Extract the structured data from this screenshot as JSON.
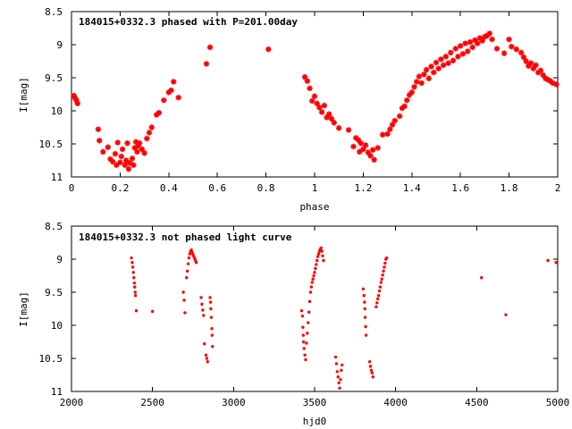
{
  "chart_data": [
    {
      "type": "scatter",
      "title": "184015+0332.3 phased with P=201.00day",
      "xlabel": "phase",
      "ylabel": "I[mag]",
      "xlim": [
        0,
        2
      ],
      "ylim": [
        11,
        8.5
      ],
      "y_inverted": true,
      "grid": false,
      "legend": "none",
      "color": "#ff0000",
      "marker": "star",
      "xticks": [
        0,
        0.2,
        0.4,
        0.6,
        0.8,
        1,
        1.2,
        1.4,
        1.6,
        1.8,
        2
      ],
      "xtick_labels": [
        "0",
        "0.2",
        "0.4",
        "0.6",
        "0.8",
        "1",
        "1.2",
        "1.4",
        "1.6",
        "1.8",
        "2"
      ],
      "yticks": [
        8.5,
        9,
        9.5,
        10,
        10.5,
        11
      ],
      "ytick_labels": [
        "8.5",
        "9",
        "9.5",
        "10",
        "10.5",
        "11"
      ],
      "series": [
        {
          "points": [
            [
              0.01,
              9.77
            ],
            [
              0.015,
              9.81
            ],
            [
              0.02,
              9.84
            ],
            [
              0.025,
              9.89
            ],
            [
              0.11,
              10.28
            ],
            [
              0.115,
              10.45
            ],
            [
              0.13,
              10.62
            ],
            [
              0.15,
              10.55
            ],
            [
              0.16,
              10.73
            ],
            [
              0.17,
              10.77
            ],
            [
              0.18,
              10.65
            ],
            [
              0.185,
              10.82
            ],
            [
              0.19,
              10.48
            ],
            [
              0.2,
              10.78
            ],
            [
              0.205,
              10.69
            ],
            [
              0.21,
              10.58
            ],
            [
              0.22,
              10.82
            ],
            [
              0.225,
              10.75
            ],
            [
              0.23,
              10.49
            ],
            [
              0.235,
              10.88
            ],
            [
              0.24,
              10.79
            ],
            [
              0.25,
              10.72
            ],
            [
              0.255,
              10.82
            ],
            [
              0.26,
              10.56
            ],
            [
              0.265,
              10.47
            ],
            [
              0.27,
              10.62
            ],
            [
              0.275,
              10.53
            ],
            [
              0.28,
              10.49
            ],
            [
              0.29,
              10.58
            ],
            [
              0.3,
              10.64
            ],
            [
              0.31,
              10.42
            ],
            [
              0.32,
              10.33
            ],
            [
              0.33,
              10.25
            ],
            [
              0.35,
              10.06
            ],
            [
              0.36,
              10.03
            ],
            [
              0.38,
              9.84
            ],
            [
              0.4,
              9.72
            ],
            [
              0.41,
              9.69
            ],
            [
              0.42,
              9.56
            ],
            [
              0.44,
              9.8
            ],
            [
              0.555,
              9.29
            ],
            [
              0.57,
              9.04
            ],
            [
              0.81,
              9.07
            ],
            [
              0.96,
              9.49
            ],
            [
              0.97,
              9.55
            ],
            [
              0.98,
              9.66
            ],
            [
              0.99,
              9.85
            ],
            [
              1.0,
              9.78
            ],
            [
              1.01,
              9.89
            ],
            [
              1.02,
              9.95
            ],
            [
              1.03,
              10.02
            ],
            [
              1.04,
              9.92
            ],
            [
              1.05,
              10.1
            ],
            [
              1.06,
              10.05
            ],
            [
              1.07,
              10.12
            ],
            [
              1.08,
              10.18
            ],
            [
              1.1,
              10.26
            ],
            [
              1.14,
              10.29
            ],
            [
              1.16,
              10.54
            ],
            [
              1.17,
              10.41
            ],
            [
              1.18,
              10.44
            ],
            [
              1.185,
              10.62
            ],
            [
              1.19,
              10.49
            ],
            [
              1.2,
              10.58
            ],
            [
              1.21,
              10.52
            ],
            [
              1.22,
              10.63
            ],
            [
              1.23,
              10.68
            ],
            [
              1.24,
              10.59
            ],
            [
              1.245,
              10.74
            ],
            [
              1.26,
              10.56
            ],
            [
              1.28,
              10.36
            ],
            [
              1.3,
              10.35
            ],
            [
              1.31,
              10.28
            ],
            [
              1.32,
              10.21
            ],
            [
              1.33,
              10.15
            ],
            [
              1.35,
              10.08
            ],
            [
              1.36,
              9.96
            ],
            [
              1.37,
              9.93
            ],
            [
              1.38,
              9.84
            ],
            [
              1.39,
              9.76
            ],
            [
              1.4,
              9.72
            ],
            [
              1.41,
              9.64
            ],
            [
              1.42,
              9.56
            ],
            [
              1.43,
              9.48
            ],
            [
              1.44,
              9.58
            ],
            [
              1.45,
              9.45
            ],
            [
              1.46,
              9.38
            ],
            [
              1.47,
              9.51
            ],
            [
              1.48,
              9.33
            ],
            [
              1.49,
              9.42
            ],
            [
              1.5,
              9.27
            ],
            [
              1.51,
              9.36
            ],
            [
              1.52,
              9.22
            ],
            [
              1.53,
              9.31
            ],
            [
              1.54,
              9.18
            ],
            [
              1.55,
              9.28
            ],
            [
              1.56,
              9.12
            ],
            [
              1.57,
              9.24
            ],
            [
              1.58,
              9.06
            ],
            [
              1.59,
              9.18
            ],
            [
              1.6,
              9.02
            ],
            [
              1.61,
              9.14
            ],
            [
              1.62,
              8.98
            ],
            [
              1.63,
              9.1
            ],
            [
              1.64,
              8.96
            ],
            [
              1.65,
              9.04
            ],
            [
              1.66,
              8.93
            ],
            [
              1.67,
              8.98
            ],
            [
              1.68,
              8.9
            ],
            [
              1.69,
              8.94
            ],
            [
              1.7,
              8.88
            ],
            [
              1.71,
              8.86
            ],
            [
              1.72,
              8.83
            ],
            [
              1.73,
              8.92
            ],
            [
              1.75,
              9.06
            ],
            [
              1.78,
              9.13
            ],
            [
              1.8,
              8.92
            ],
            [
              1.81,
              9.03
            ],
            [
              1.83,
              9.07
            ],
            [
              1.85,
              9.12
            ],
            [
              1.86,
              9.19
            ],
            [
              1.87,
              9.25
            ],
            [
              1.88,
              9.32
            ],
            [
              1.89,
              9.28
            ],
            [
              1.9,
              9.36
            ],
            [
              1.91,
              9.31
            ],
            [
              1.92,
              9.42
            ],
            [
              1.93,
              9.39
            ],
            [
              1.94,
              9.46
            ],
            [
              1.95,
              9.51
            ],
            [
              1.96,
              9.53
            ],
            [
              1.97,
              9.55
            ],
            [
              1.98,
              9.58
            ],
            [
              1.995,
              9.6
            ]
          ]
        }
      ]
    },
    {
      "type": "scatter",
      "title": "184015+0332.3 not phased light curve",
      "xlabel": "hjd0",
      "ylabel": "I[mag]",
      "xlim": [
        2000,
        5000
      ],
      "ylim": [
        11,
        8.5
      ],
      "y_inverted": true,
      "grid": false,
      "legend": "none",
      "color": "#ff0000",
      "marker": "dot",
      "xticks": [
        2000,
        2500,
        3000,
        3500,
        4000,
        4500,
        5000
      ],
      "xtick_labels": [
        "2000",
        "2500",
        "3000",
        "3500",
        "4000",
        "4500",
        "5000"
      ],
      "yticks": [
        8.5,
        9,
        9.5,
        10,
        10.5,
        11
      ],
      "ytick_labels": [
        "8.5",
        "9",
        "9.5",
        "10",
        "10.5",
        "11"
      ],
      "series": [
        {
          "points": [
            [
              2370,
              8.98
            ],
            [
              2375,
              9.05
            ],
            [
              2378,
              9.12
            ],
            [
              2382,
              9.2
            ],
            [
              2385,
              9.28
            ],
            [
              2388,
              9.36
            ],
            [
              2390,
              9.42
            ],
            [
              2393,
              9.5
            ],
            [
              2395,
              9.55
            ],
            [
              2400,
              9.78
            ],
            [
              2500,
              9.79
            ],
            [
              2690,
              9.5
            ],
            [
              2695,
              9.62
            ],
            [
              2700,
              9.81
            ],
            [
              2710,
              9.28
            ],
            [
              2715,
              9.18
            ],
            [
              2720,
              9.07
            ],
            [
              2725,
              8.98
            ],
            [
              2730,
              8.92
            ],
            [
              2735,
              8.88
            ],
            [
              2740,
              8.86
            ],
            [
              2745,
              8.9
            ],
            [
              2750,
              8.93
            ],
            [
              2755,
              8.96
            ],
            [
              2760,
              8.99
            ],
            [
              2765,
              9.02
            ],
            [
              2770,
              9.05
            ],
            [
              2800,
              9.58
            ],
            [
              2805,
              9.68
            ],
            [
              2810,
              9.77
            ],
            [
              2815,
              9.85
            ],
            [
              2820,
              10.28
            ],
            [
              2830,
              10.45
            ],
            [
              2835,
              10.5
            ],
            [
              2840,
              10.55
            ],
            [
              2855,
              9.58
            ],
            [
              2858,
              9.65
            ],
            [
              2860,
              9.75
            ],
            [
              2863,
              9.88
            ],
            [
              2866,
              10.05
            ],
            [
              2868,
              10.15
            ],
            [
              2870,
              10.32
            ],
            [
              3420,
              9.78
            ],
            [
              3425,
              9.86
            ],
            [
              3428,
              10.03
            ],
            [
              3430,
              10.15
            ],
            [
              3432,
              10.25
            ],
            [
              3435,
              10.35
            ],
            [
              3440,
              10.45
            ],
            [
              3445,
              10.52
            ],
            [
              3450,
              10.27
            ],
            [
              3455,
              10.12
            ],
            [
              3460,
              9.96
            ],
            [
              3465,
              9.8
            ],
            [
              3470,
              9.64
            ],
            [
              3475,
              9.5
            ],
            [
              3480,
              9.42
            ],
            [
              3485,
              9.35
            ],
            [
              3490,
              9.3
            ],
            [
              3495,
              9.25
            ],
            [
              3500,
              9.2
            ],
            [
              3505,
              9.14
            ],
            [
              3510,
              9.08
            ],
            [
              3515,
              9.02
            ],
            [
              3520,
              8.96
            ],
            [
              3525,
              8.92
            ],
            [
              3530,
              8.88
            ],
            [
              3535,
              8.85
            ],
            [
              3540,
              8.83
            ],
            [
              3545,
              8.88
            ],
            [
              3550,
              8.95
            ],
            [
              3555,
              9.02
            ],
            [
              3630,
              10.48
            ],
            [
              3635,
              10.58
            ],
            [
              3640,
              10.7
            ],
            [
              3645,
              10.78
            ],
            [
              3650,
              10.87
            ],
            [
              3655,
              10.95
            ],
            [
              3660,
              10.82
            ],
            [
              3665,
              10.68
            ],
            [
              3670,
              10.6
            ],
            [
              3800,
              9.45
            ],
            [
              3805,
              9.55
            ],
            [
              3808,
              9.65
            ],
            [
              3810,
              9.75
            ],
            [
              3812,
              9.88
            ],
            [
              3815,
              10.02
            ],
            [
              3818,
              10.15
            ],
            [
              3840,
              10.55
            ],
            [
              3845,
              10.62
            ],
            [
              3850,
              10.68
            ],
            [
              3855,
              10.72
            ],
            [
              3860,
              10.78
            ],
            [
              3880,
              9.72
            ],
            [
              3885,
              9.66
            ],
            [
              3890,
              9.6
            ],
            [
              3895,
              9.55
            ],
            [
              3900,
              9.48
            ],
            [
              3905,
              9.42
            ],
            [
              3910,
              9.35
            ],
            [
              3915,
              9.3
            ],
            [
              3920,
              9.24
            ],
            [
              3925,
              9.18
            ],
            [
              3930,
              9.12
            ],
            [
              3935,
              9.06
            ],
            [
              3940,
              9.0
            ],
            [
              3945,
              8.98
            ],
            [
              4530,
              9.28
            ],
            [
              4680,
              9.84
            ],
            [
              4940,
              9.02
            ],
            [
              4990,
              9.05
            ]
          ]
        }
      ]
    }
  ]
}
